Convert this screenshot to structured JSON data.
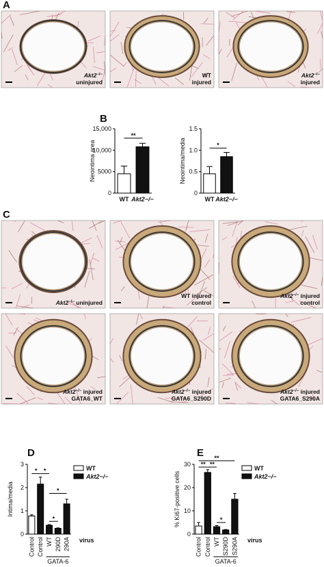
{
  "panels": [
    "A",
    "B",
    "C",
    "D",
    "E"
  ],
  "micrographs": [
    {
      "lines": [
        {
          "gene": "Akt2",
          "genotype": "−/−"
        },
        {
          "text": "uninjured"
        }
      ]
    },
    {
      "lines": [
        {
          "text": "WT"
        },
        {
          "text": "injured"
        }
      ]
    },
    {
      "lines": [
        {
          "gene": "Akt2",
          "genotype": "−/−"
        },
        {
          "text": "injured"
        }
      ]
    },
    {
      "lines": [
        {
          "gene": "Akt2",
          "genotype": "−/−",
          "text": " uninjured"
        }
      ]
    },
    {
      "lines": [
        {
          "text": "WT injured"
        },
        {
          "text": "control"
        }
      ]
    },
    {
      "lines": [
        {
          "gene": "Akt2",
          "genotype": "−/−",
          "text": " injured"
        },
        {
          "text": "control"
        }
      ]
    },
    {
      "lines": [
        {
          "gene": "Akt2",
          "genotype": "−/−",
          "text": " injured"
        },
        {
          "text": "GATA6_WT"
        }
      ]
    },
    {
      "lines": [
        {
          "gene": "Akt2",
          "genotype": "−/−",
          "text": " injured"
        },
        {
          "text": "GATA6_S290D"
        }
      ]
    },
    {
      "lines": [
        {
          "gene": "Akt2",
          "genotype": "−/−",
          "text": " injured"
        },
        {
          "text": "GATA6_S290A"
        }
      ]
    }
  ],
  "chart_data": [
    {
      "type": "bar",
      "ylabel": "Neointima area",
      "categories": [
        "WT",
        "Akt2−/−"
      ],
      "values": [
        4500,
        10800
      ],
      "errors": [
        1800,
        800
      ],
      "colors": [
        "#ffffff",
        "#111111"
      ],
      "ylim": [
        0,
        15000
      ],
      "yticks": [
        0,
        5000,
        {
          "value": 10000,
          "label": "10,000"
        },
        {
          "value": 15000,
          "label": "15,000"
        }
      ],
      "brackets": [
        {
          "label": "**",
          "categories": [
            0,
            1
          ],
          "y": 12800
        }
      ]
    },
    {
      "type": "bar",
      "ylabel": "Neointima/media",
      "categories": [
        "WT",
        "Akt2−/−"
      ],
      "values": [
        0.45,
        0.85
      ],
      "errors": [
        0.17,
        0.1
      ],
      "colors": [
        "#ffffff",
        "#111111"
      ],
      "ylim": [
        0,
        1.5
      ],
      "yticks": [
        0,
        0.5,
        {
          "value": 1.0,
          "label": "1.0"
        },
        1.5
      ],
      "brackets": [
        {
          "label": "*",
          "categories": [
            0,
            1
          ],
          "y": 1.05
        }
      ]
    },
    {
      "type": "bar",
      "ylabel": "Intima/media",
      "categories": [
        "Control",
        "Control",
        "WT",
        "290D",
        "290A"
      ],
      "series": [
        {
          "name": "WT",
          "color": "#ffffff",
          "values": [
            0.78,
            null,
            null,
            null,
            null
          ],
          "errors": [
            0.05,
            null,
            null,
            null,
            null
          ]
        },
        {
          "name": "Akt2−/−",
          "color": "#111111",
          "values": [
            null,
            2.15,
            0.38,
            0.25,
            1.3
          ],
          "errors": [
            null,
            0.3,
            0.03,
            0.02,
            0.2
          ]
        }
      ],
      "ylim": [
        0,
        3
      ],
      "yticks": [
        0,
        1,
        2,
        3
      ],
      "legend": "upper right",
      "rotated_labels": true,
      "x_note": "virus",
      "group": {
        "label": "GATA-6",
        "categories": [
          2,
          4
        ]
      },
      "brackets": [
        {
          "label": "*",
          "categories": [
            0,
            1
          ],
          "y": 2.6
        },
        {
          "label": "*",
          "categories": [
            1,
            2
          ],
          "y": 2.6
        },
        {
          "label": "*",
          "categories": [
            2,
            4
          ],
          "y": 1.75
        },
        {
          "label": "*",
          "categories": [
            2,
            3
          ],
          "y": 0.55
        }
      ]
    },
    {
      "type": "bar",
      "ylabel": "% Ki67-positive cells",
      "categories": [
        "Control",
        "Control",
        "WT",
        "S290D",
        "S290A"
      ],
      "series": [
        {
          "name": "WT",
          "color": "#ffffff",
          "values": [
            3.5,
            null,
            null,
            null,
            null
          ],
          "errors": [
            1.5,
            null,
            null,
            null,
            null
          ]
        },
        {
          "name": "Akt2−/−",
          "color": "#111111",
          "values": [
            null,
            26.5,
            3.2,
            1.8,
            15
          ],
          "errors": [
            null,
            1.2,
            0.5,
            0.2,
            2.5
          ]
        }
      ],
      "ylim": [
        0,
        30
      ],
      "yticks": [
        0,
        10,
        20,
        30
      ],
      "legend": "upper right",
      "rotated_labels": true,
      "x_note": "virus",
      "group": {
        "label": "GATA-6",
        "categories": [
          2,
          4
        ]
      },
      "brackets": [
        {
          "label": "**",
          "categories": [
            0,
            1
          ],
          "y": 28.8
        },
        {
          "label": "**",
          "categories": [
            1,
            2
          ],
          "y": 28.8
        },
        {
          "label": "**",
          "categories": [
            0,
            4
          ],
          "y": 31.5
        },
        {
          "label": "*",
          "categories": [
            2,
            3
          ],
          "y": 5
        }
      ]
    }
  ]
}
